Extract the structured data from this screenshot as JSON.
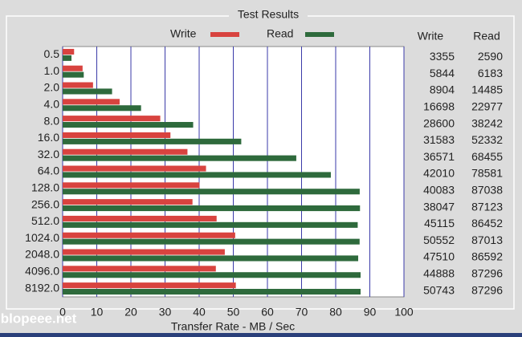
{
  "chart_data": {
    "type": "bar",
    "orientation": "horizontal",
    "title": "Test Results",
    "x_label": "Transfer Rate - MB / Sec",
    "categories": [
      "0.5",
      "1.0",
      "2.0",
      "4.0",
      "8.0",
      "16.0",
      "32.0",
      "64.0",
      "128.0",
      "256.0",
      "512.0",
      "1024.0",
      "2048.0",
      "4096.0",
      "8192.0"
    ],
    "series": [
      {
        "name": "Write",
        "color": "#d8433f",
        "values": [
          3.355,
          5.844,
          8.904,
          16.698,
          28.6,
          31.583,
          36.571,
          42.01,
          40.083,
          38.047,
          45.115,
          50.552,
          47.51,
          44.888,
          50.743
        ],
        "value_labels": [
          "3355",
          "5844",
          "8904",
          "16698",
          "28600",
          "31583",
          "36571",
          "42010",
          "40083",
          "38047",
          "45115",
          "50552",
          "47510",
          "44888",
          "50743"
        ]
      },
      {
        "name": "Read",
        "color": "#2e6a3c",
        "values": [
          2.59,
          6.183,
          14.485,
          22.977,
          38.242,
          52.332,
          68.455,
          78.581,
          87.038,
          87.123,
          86.452,
          87.013,
          86.592,
          87.296,
          87.296
        ],
        "value_labels": [
          "2590",
          "6183",
          "14485",
          "22977",
          "38242",
          "52332",
          "68455",
          "78581",
          "87038",
          "87123",
          "86452",
          "87013",
          "86592",
          "87296",
          "87296"
        ]
      }
    ],
    "xlim": [
      0,
      100
    ],
    "xticks": [
      0,
      10,
      20,
      30,
      40,
      50,
      60,
      70,
      80,
      90,
      100
    ],
    "grid": true
  },
  "watermark": "blopeee.net"
}
